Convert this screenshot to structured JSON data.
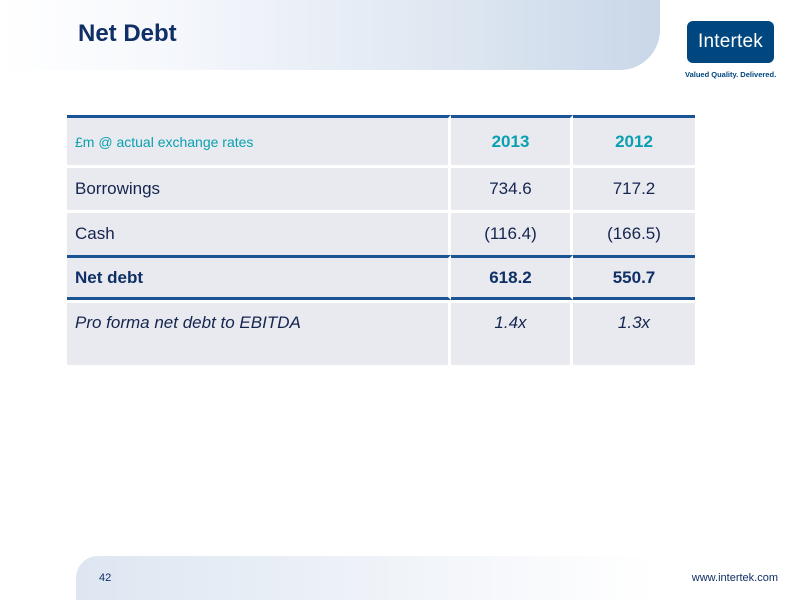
{
  "title": "Net Debt",
  "logo": {
    "name": "Intertek",
    "tagline": "Valued Quality. Delivered."
  },
  "table": {
    "header": [
      "£m @ actual exchange rates",
      "2013",
      "2012"
    ],
    "rows": [
      [
        "Borrowings",
        "734.6",
        "717.2"
      ],
      [
        "Cash",
        "(116.4)",
        "(166.5)"
      ],
      [
        "Net debt",
        "618.2",
        "550.7"
      ],
      [
        "Pro forma net debt to EBITDA",
        "1.4x",
        "1.3x"
      ]
    ]
  },
  "footer": {
    "page_number": "42",
    "url": "www.intertek.com"
  },
  "colors": {
    "title": "#0f2f66",
    "accent_teal": "#0aa0b0",
    "logo_bg": "#00467f",
    "rule": "#1a5494",
    "cell_bg": "#e8eaf0"
  }
}
